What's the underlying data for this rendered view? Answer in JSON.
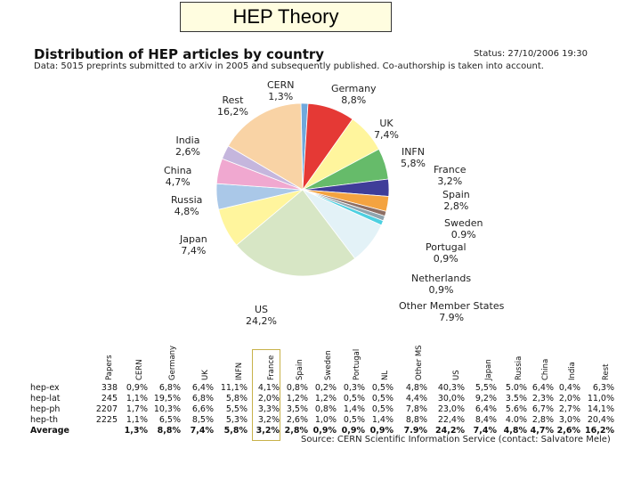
{
  "slide_title": "HEP Theory",
  "chart_title": "Distribution of HEP articles by country",
  "status": "Status: 27/10/2006 19:30",
  "subtitle": "Data: 5015 preprints submitted to arXiv in 2005 and subsequently published. Co-authorship is taken into account.",
  "chart_data": {
    "type": "pie",
    "slices": [
      {
        "name": "CERN",
        "label": "1,3%",
        "value": 1.3,
        "color": "#6fa8dc"
      },
      {
        "name": "Germany",
        "label": "8,8%",
        "value": 8.8,
        "color": "#e53935"
      },
      {
        "name": "UK",
        "label": "7,4%",
        "value": 7.4,
        "color": "#fff59d"
      },
      {
        "name": "INFN",
        "label": "5,8%",
        "value": 5.8,
        "color": "#66bb6a"
      },
      {
        "name": "France",
        "label": "3,2%",
        "value": 3.2,
        "color": "#3f3d99"
      },
      {
        "name": "Spain",
        "label": "2,8%",
        "value": 2.8,
        "color": "#f4a340"
      },
      {
        "name": "Sweden",
        "label": "0.9%",
        "value": 0.9,
        "color": "#8d6e63"
      },
      {
        "name": "Portugal",
        "label": "0,9%",
        "value": 0.9,
        "color": "#90a4ae"
      },
      {
        "name": "Netherlands",
        "label": "0,9%",
        "value": 0.9,
        "color": "#4dd0e1"
      },
      {
        "name": "Other Member States",
        "label": "7.9%",
        "value": 7.9,
        "color": "#e3f2f7"
      },
      {
        "name": "US",
        "label": "24,2%",
        "value": 24.2,
        "color": "#d7e6c5"
      },
      {
        "name": "Japan",
        "label": "7,4%",
        "value": 7.4,
        "color": "#fff59d"
      },
      {
        "name": "Russia",
        "label": "4,8%",
        "value": 4.8,
        "color": "#aac8e8"
      },
      {
        "name": "China",
        "label": "4,7%",
        "value": 4.7,
        "color": "#f0a8d0"
      },
      {
        "name": "India",
        "label": "2,6%",
        "value": 2.6,
        "color": "#c5b6dd"
      },
      {
        "name": "Rest",
        "label": "16,2%",
        "value": 16.2,
        "color": "#f9d3a5"
      }
    ]
  },
  "table": {
    "columns": [
      "Papers",
      "CERN",
      "Germany",
      "UK",
      "INFN",
      "France",
      "Spain",
      "Sweden",
      "Portugal",
      "NL",
      "Other MS",
      "US",
      "Japan",
      "Russia",
      "China",
      "India",
      "Rest"
    ],
    "rows": [
      {
        "label": "hep-ex",
        "cells": [
          "338",
          "0,9%",
          "6,8%",
          "6,4%",
          "11,1%",
          "4,1%",
          "0,8%",
          "0,2%",
          "0,3%",
          "0,5%",
          "4,8%",
          "40,3%",
          "5,5%",
          "5.0%",
          "6,4%",
          "0,4%",
          "6,3%"
        ]
      },
      {
        "label": "hep-lat",
        "cells": [
          "245",
          "1,1%",
          "19,5%",
          "6,8%",
          "5,8%",
          "2,0%",
          "1,2%",
          "1,2%",
          "0,5%",
          "0,5%",
          "4,4%",
          "30,0%",
          "9,2%",
          "3.5%",
          "2,3%",
          "2,0%",
          "11,0%"
        ]
      },
      {
        "label": "hep-ph",
        "cells": [
          "2207",
          "1,7%",
          "10,3%",
          "6,6%",
          "5,5%",
          "3,3%",
          "3,5%",
          "0,8%",
          "1,4%",
          "0,5%",
          "7,8%",
          "23,0%",
          "6,4%",
          "5.6%",
          "6,7%",
          "2,7%",
          "14,1%"
        ]
      },
      {
        "label": "hep-th",
        "cells": [
          "2225",
          "1,1%",
          "6,5%",
          "8,5%",
          "5,3%",
          "3,2%",
          "2,6%",
          "1,0%",
          "0,5%",
          "1,4%",
          "8,8%",
          "22,4%",
          "8,4%",
          "4.0%",
          "2,8%",
          "3,0%",
          "20,4%"
        ]
      },
      {
        "label": "Average",
        "cells": [
          "",
          "1,3%",
          "8,8%",
          "7,4%",
          "5,8%",
          "3,2%",
          "2,8%",
          "0,9%",
          "0,9%",
          "0,9%",
          "7.9%",
          "24,2%",
          "7,4%",
          "4,8%",
          "4,7%",
          "2,6%",
          "16,2%"
        ]
      }
    ]
  },
  "source": "Source: CERN Scientific Information Service (contact: Salvatore Mele)"
}
